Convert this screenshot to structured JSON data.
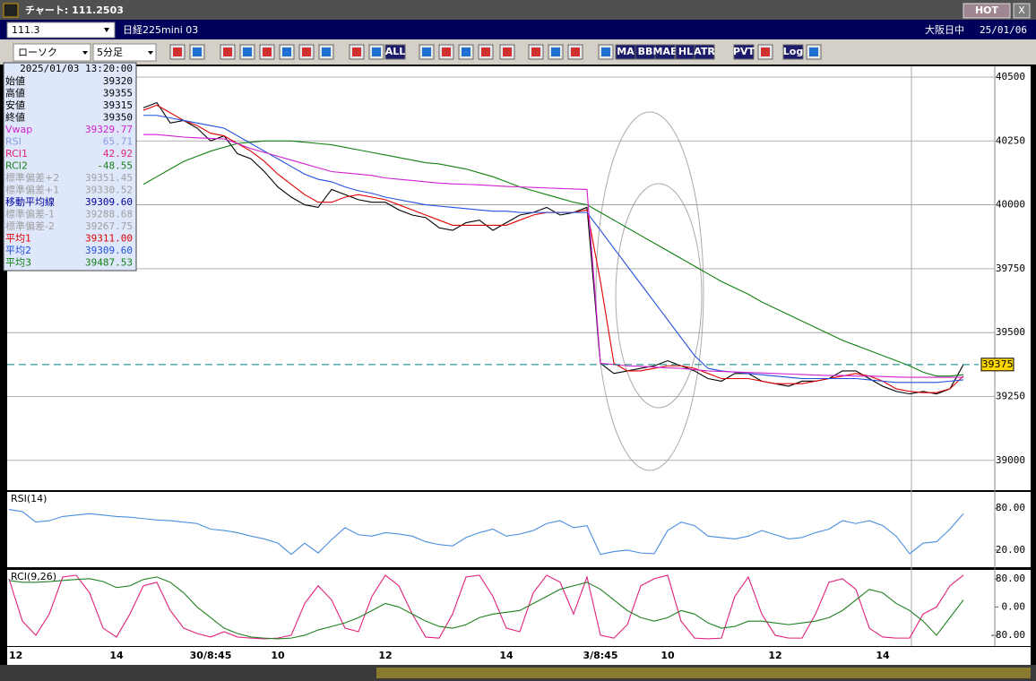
{
  "window": {
    "title": "チャート: 111.2503",
    "hot": "HOT",
    "close": "X"
  },
  "symbol_bar": {
    "code": "111.3",
    "name": "日経225mini 03",
    "market": "大阪日中",
    "date": "25/01/06"
  },
  "toolbar": {
    "chart_type": "ローソク",
    "interval": "5分足",
    "buttons": [
      "ALL",
      "MA",
      "BB",
      "MAE",
      "HL",
      "ATR",
      "PVT",
      "Log"
    ]
  },
  "info": {
    "datetime": "2025/01/03 13:20:00",
    "rows": [
      {
        "label": "始値",
        "value": "39320",
        "color": "#000000"
      },
      {
        "label": "高値",
        "value": "39355",
        "color": "#000000"
      },
      {
        "label": "安値",
        "value": "39315",
        "color": "#000000"
      },
      {
        "label": "終値",
        "value": "39350",
        "color": "#000000"
      },
      {
        "label": "Vwap",
        "value": "39329.77",
        "color": "#d020d0"
      },
      {
        "label": "RSI",
        "value": "65.71",
        "color": "#8a9ae0"
      },
      {
        "label": "RCI1",
        "value": "42.92",
        "color": "#e0207a"
      },
      {
        "label": "RCI2",
        "value": "-48.55",
        "color": "#208020"
      },
      {
        "label": "標準偏差+2",
        "value": "39351.45",
        "color": "#a0a0a0"
      },
      {
        "label": "標準偏差+1",
        "value": "39330.52",
        "color": "#a0a0a0"
      },
      {
        "label": "移動平均線",
        "value": "39309.60",
        "color": "#0000a0"
      },
      {
        "label": "標準偏差-1",
        "value": "39288.68",
        "color": "#a0a0a0"
      },
      {
        "label": "標準偏差-2",
        "value": "39267.75",
        "color": "#a0a0a0"
      },
      {
        "label": "平均1",
        "value": "39311.00",
        "color": "#e00000"
      },
      {
        "label": "平均2",
        "value": "39309.60",
        "color": "#2050e0"
      },
      {
        "label": "平均3",
        "value": "39487.53",
        "color": "#108010"
      }
    ]
  },
  "chart_data": [
    {
      "type": "line",
      "categories": [
        "12",
        null,
        null,
        null,
        null,
        null,
        null,
        null,
        "14",
        null,
        null,
        null,
        null,
        null,
        null,
        "30/8:45",
        null,
        null,
        null,
        null,
        "10",
        null,
        null,
        null,
        null,
        null,
        null,
        null,
        "12",
        null,
        null,
        null,
        null,
        null,
        null,
        null,
        null,
        "14",
        null,
        null,
        null,
        null,
        null,
        null,
        "3/8:45",
        null,
        null,
        null,
        null,
        "10",
        null,
        null,
        null,
        null,
        null,
        null,
        null,
        "12",
        null,
        null,
        null,
        null,
        null,
        null,
        null,
        "14",
        null,
        null,
        null,
        null,
        null,
        null
      ],
      "ylim": [
        38887,
        40542
      ],
      "yticks": [
        40500,
        40250,
        40000,
        39750,
        39500,
        39250,
        39000
      ],
      "grid": true,
      "last_price": 39375,
      "last_price_color": "#008080",
      "series": [
        {
          "color": "#000000",
          "values": [
            null,
            null,
            null,
            null,
            null,
            null,
            null,
            null,
            null,
            null,
            40380,
            40400,
            40320,
            40330,
            40300,
            40250,
            40270,
            40200,
            40180,
            40130,
            40070,
            40030,
            40000,
            39990,
            40060,
            40040,
            40020,
            40010,
            40010,
            39980,
            39960,
            39950,
            39910,
            39900,
            39930,
            39940,
            39900,
            39930,
            39960,
            39970,
            39990,
            39960,
            39970,
            39990,
            39380,
            39340,
            39350,
            39360,
            39370,
            39390,
            39370,
            39350,
            39320,
            39310,
            39340,
            39340,
            39310,
            39300,
            39290,
            39310,
            39310,
            39320,
            39350,
            39350,
            39320,
            39290,
            39270,
            39260,
            39270,
            39260,
            39280,
            39375
          ]
        },
        {
          "color": "#e00000",
          "values": [
            null,
            null,
            null,
            null,
            null,
            null,
            null,
            null,
            null,
            null,
            40370,
            40390,
            40360,
            40330,
            40310,
            40280,
            40270,
            40240,
            40210,
            40170,
            40120,
            40080,
            40040,
            40010,
            40010,
            40030,
            40040,
            40030,
            40020,
            40000,
            39980,
            39960,
            39940,
            39920,
            39920,
            39920,
            39920,
            39920,
            39940,
            39960,
            39970,
            39970,
            39970,
            39980,
            39700,
            39380,
            39350,
            39350,
            39360,
            39370,
            39370,
            39360,
            39340,
            39320,
            39320,
            39320,
            39310,
            39300,
            39300,
            39300,
            39310,
            39320,
            39330,
            39340,
            39330,
            39310,
            39280,
            39270,
            39265,
            39265,
            39280,
            39330
          ]
        },
        {
          "color": "#2050e0",
          "values": [
            null,
            null,
            null,
            null,
            null,
            null,
            null,
            null,
            null,
            null,
            40350,
            40350,
            40340,
            40330,
            40320,
            40310,
            40300,
            40270,
            40240,
            40210,
            40180,
            40150,
            40120,
            40100,
            40090,
            40070,
            40055,
            40045,
            40030,
            40020,
            40010,
            40000,
            39995,
            39990,
            39985,
            39980,
            39975,
            39975,
            39970,
            39970,
            39970,
            39970,
            39970,
            39970,
            39900,
            39830,
            39760,
            39690,
            39620,
            39550,
            39480,
            39410,
            39360,
            39350,
            39345,
            39340,
            39335,
            39330,
            39325,
            39320,
            39320,
            39320,
            39320,
            39320,
            39315,
            39310,
            39305,
            39305,
            39305,
            39305,
            39310,
            39315
          ]
        },
        {
          "color": "#108010",
          "values": [
            null,
            null,
            null,
            null,
            null,
            null,
            null,
            null,
            null,
            null,
            40080,
            40110,
            40140,
            40170,
            40190,
            40210,
            40225,
            40240,
            40245,
            40250,
            40250,
            40250,
            40245,
            40240,
            40235,
            40225,
            40215,
            40205,
            40195,
            40185,
            40175,
            40165,
            40160,
            40150,
            40140,
            40125,
            40110,
            40090,
            40070,
            40055,
            40040,
            40025,
            40010,
            40000,
            39970,
            39940,
            39910,
            39880,
            39850,
            39820,
            39790,
            39760,
            39730,
            39700,
            39675,
            39650,
            39620,
            39595,
            39570,
            39545,
            39520,
            39495,
            39470,
            39450,
            39430,
            39410,
            39390,
            39370,
            39345,
            39330,
            39330,
            39335
          ]
        },
        {
          "color": "#d020d0",
          "values": [
            null,
            null,
            null,
            null,
            null,
            null,
            null,
            null,
            null,
            null,
            40275,
            40275,
            40270,
            40265,
            40262,
            40260,
            40258,
            40240,
            40220,
            40205,
            40190,
            40175,
            40160,
            40145,
            40130,
            40125,
            40120,
            40115,
            40105,
            40100,
            40095,
            40090,
            40085,
            40082,
            40080,
            40078,
            40075,
            40072,
            40070,
            40068,
            40066,
            40064,
            40062,
            40060,
            39380,
            39375,
            39370,
            39368,
            39365,
            39362,
            39360,
            39355,
            39350,
            39348,
            39346,
            39344,
            39342,
            39340,
            39338,
            39336,
            39334,
            39332,
            39332,
            39330,
            39330,
            39328,
            39326,
            39325,
            39325,
            39325,
            39325,
            39325
          ]
        }
      ]
    },
    {
      "type": "line",
      "title": "RSI(14)",
      "ylim": [
        -3,
        103
      ],
      "yticks": [
        {
          "value": 80,
          "label": "80.00"
        },
        {
          "value": 20,
          "label": "20.00"
        }
      ],
      "series": [
        {
          "color": "#4a8ee0",
          "values": [
            78,
            75,
            60,
            62,
            68,
            70,
            72,
            70,
            68,
            67,
            65,
            63,
            62,
            60,
            58,
            50,
            48,
            45,
            40,
            36,
            30,
            14,
            30,
            16,
            35,
            52,
            42,
            40,
            45,
            43,
            40,
            32,
            28,
            26,
            38,
            45,
            50,
            40,
            43,
            48,
            58,
            62,
            52,
            55,
            14,
            18,
            20,
            16,
            15,
            48,
            60,
            55,
            40,
            38,
            36,
            40,
            48,
            42,
            36,
            38,
            45,
            50,
            62,
            58,
            62,
            55,
            40,
            15,
            30,
            32,
            50,
            72
          ]
        }
      ]
    },
    {
      "type": "line",
      "title": "RCI(9,26)",
      "ylim": [
        -108,
        105
      ],
      "yticks": [
        {
          "value": 80,
          "label": "80.00"
        },
        {
          "value": 0,
          "label": "0.00"
        },
        {
          "value": -80,
          "label": "-80.00"
        }
      ],
      "series": [
        {
          "color": "#e0207a",
          "values": [
            80,
            -40,
            -80,
            -20,
            85,
            90,
            40,
            -60,
            -85,
            -20,
            60,
            70,
            -10,
            -60,
            -75,
            -85,
            -70,
            -85,
            -88,
            -90,
            -88,
            -80,
            10,
            60,
            20,
            -60,
            -70,
            30,
            90,
            60,
            -20,
            -85,
            -88,
            -20,
            85,
            90,
            30,
            -60,
            -70,
            40,
            90,
            70,
            -20,
            85,
            -80,
            -88,
            -50,
            60,
            80,
            90,
            -40,
            -88,
            -90,
            -88,
            30,
            85,
            -20,
            -80,
            -88,
            -88,
            -20,
            70,
            80,
            50,
            -60,
            -85,
            -88,
            -88,
            -20,
            0,
            60,
            90
          ]
        },
        {
          "color": "#208020",
          "values": [
            75,
            70,
            70,
            72,
            75,
            78,
            80,
            72,
            55,
            60,
            78,
            85,
            70,
            40,
            0,
            -30,
            -60,
            -75,
            -85,
            -88,
            -90,
            -88,
            -80,
            -65,
            -55,
            -45,
            -30,
            -10,
            10,
            0,
            -20,
            -40,
            -55,
            -60,
            -50,
            -30,
            -20,
            -15,
            -10,
            10,
            30,
            50,
            60,
            70,
            50,
            20,
            -10,
            -30,
            -40,
            -30,
            -10,
            -20,
            -45,
            -60,
            -55,
            -40,
            -40,
            -45,
            -50,
            -45,
            -40,
            -30,
            -10,
            20,
            50,
            40,
            10,
            -10,
            -40,
            -80,
            -30,
            20
          ]
        }
      ]
    }
  ]
}
